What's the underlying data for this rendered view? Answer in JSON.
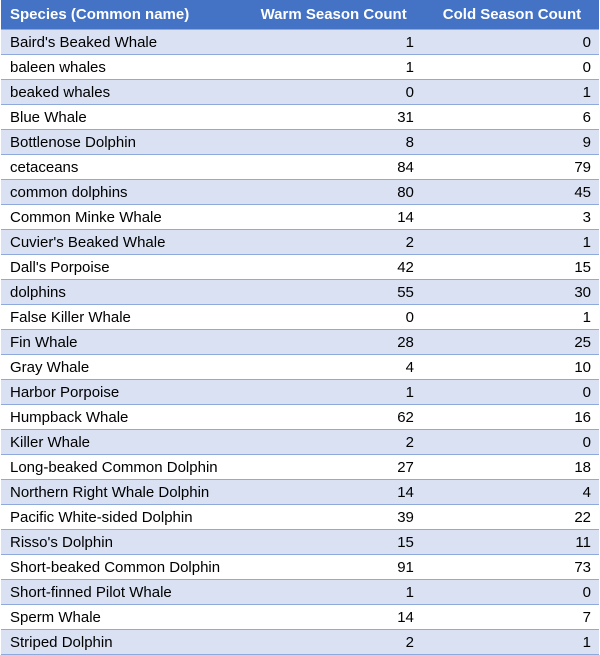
{
  "table": {
    "headers": [
      "Species (Common name)",
      "Warm Season Count",
      "Cold Season Count"
    ],
    "rows": [
      [
        "Baird's Beaked Whale",
        "1",
        "0"
      ],
      [
        "baleen whales",
        "1",
        "0"
      ],
      [
        "beaked whales",
        "0",
        "1"
      ],
      [
        "Blue Whale",
        "31",
        "6"
      ],
      [
        "Bottlenose Dolphin",
        "8",
        "9"
      ],
      [
        "cetaceans",
        "84",
        "79"
      ],
      [
        "common dolphins",
        "80",
        "45"
      ],
      [
        "Common Minke Whale",
        "14",
        "3"
      ],
      [
        "Cuvier's Beaked Whale",
        "2",
        "1"
      ],
      [
        "Dall's Porpoise",
        "42",
        "15"
      ],
      [
        "dolphins",
        "55",
        "30"
      ],
      [
        "False Killer Whale",
        "0",
        "1"
      ],
      [
        "Fin Whale",
        "28",
        "25"
      ],
      [
        "Gray Whale",
        "4",
        "10"
      ],
      [
        "Harbor Porpoise",
        "1",
        "0"
      ],
      [
        "Humpback Whale",
        "62",
        "16"
      ],
      [
        "Killer Whale",
        "2",
        "0"
      ],
      [
        "Long-beaked Common Dolphin",
        "27",
        "18"
      ],
      [
        "Northern Right Whale Dolphin",
        "14",
        "4"
      ],
      [
        "Pacific White-sided Dolphin",
        "39",
        "22"
      ],
      [
        "Risso's Dolphin",
        "15",
        "11"
      ],
      [
        "Short-beaked Common Dolphin",
        "91",
        "73"
      ],
      [
        "Short-finned Pilot Whale",
        "1",
        "0"
      ],
      [
        "Sperm Whale",
        "14",
        "7"
      ],
      [
        "Striped Dolphin",
        "2",
        "1"
      ]
    ]
  },
  "colors": {
    "header_bg": "#4472c4",
    "header_text": "#ffffff",
    "band_bg": "#d9e1f2",
    "row_border": "#8ea9db"
  }
}
